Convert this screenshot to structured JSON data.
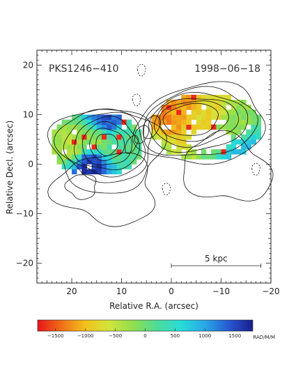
{
  "chart_data": {
    "type": "heatmap",
    "xlabel": "Relative R.A. (arcsec)",
    "ylabel": "Relative Decl. (arcsec)",
    "xlim": [
      27,
      -20
    ],
    "ylim": [
      -24,
      23
    ],
    "x_ticks": [
      20,
      10,
      0,
      -10,
      -20
    ],
    "y_ticks": [
      20,
      10,
      0,
      -10,
      -20
    ],
    "x_tick_labels": [
      "20",
      "10",
      "0",
      "−10",
      "−20"
    ],
    "y_tick_labels": [
      "20",
      "10",
      "0",
      "−10",
      "−20"
    ],
    "annotations": {
      "source_name": "PKS1246−410",
      "date": "1998−06−18",
      "scale_bar_label": "5 kpc",
      "scale_bar_x": [
        0,
        -18
      ],
      "scale_bar_y": -20.5
    },
    "colorbar": {
      "min": -1800,
      "max": 1800,
      "ticks": [
        -1500,
        -1000,
        -500,
        0,
        500,
        1000,
        1500
      ],
      "tick_labels": [
        "−1500",
        "−1000",
        "−500",
        "0",
        "500",
        "1000",
        "1500"
      ],
      "unit": "RAD/M/M",
      "colors": [
        "#e8141a",
        "#f07018",
        "#f2c21c",
        "#d2e43c",
        "#8ede4e",
        "#4edb9a",
        "#28dcd8",
        "#28a8e6",
        "#2858d2",
        "#181e8c"
      ]
    },
    "rm_regions": [
      {
        "x": 20,
        "y": 4,
        "rm": -400
      },
      {
        "x": 15,
        "y": 5,
        "rm": -200
      },
      {
        "x": 11,
        "y": 4,
        "rm": 200
      },
      {
        "x": 7,
        "y": 4,
        "rm": 100
      },
      {
        "x": 3,
        "y": 10,
        "rm": -1300
      },
      {
        "x": -2,
        "y": 12,
        "rm": -1200
      },
      {
        "x": -7,
        "y": 10,
        "rm": -800
      },
      {
        "x": -12,
        "y": 7,
        "rm": -200
      },
      {
        "x": -14,
        "y": 3,
        "rm": 800
      },
      {
        "x": 13,
        "y": 9,
        "rm": 1400
      },
      {
        "x": 16,
        "y": 0,
        "rm": 1600
      }
    ]
  }
}
